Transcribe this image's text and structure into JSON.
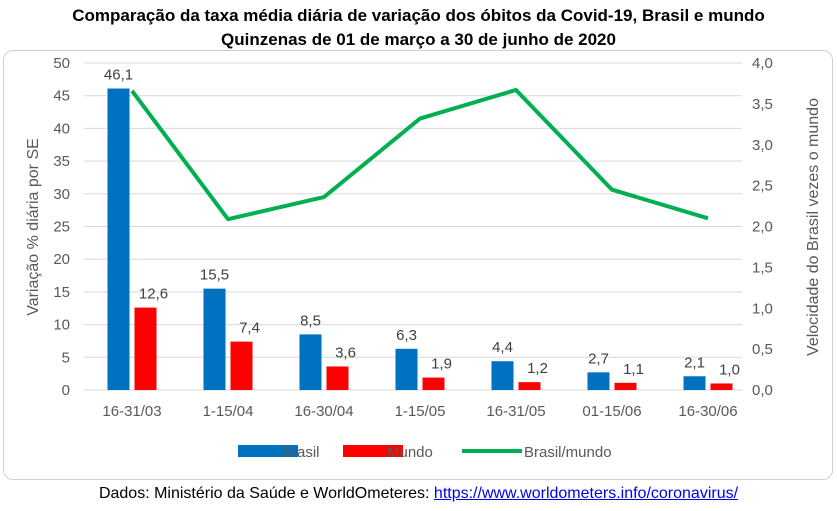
{
  "chart_data": {
    "type": "bar+line",
    "title": "Comparação da taxa média diária de variação dos óbitos da Covid-19, Brasil e mundo",
    "subtitle": "Quinzenas de 01 de março a 30 de junho de 2020",
    "categories": [
      "16-31/03",
      "1-15/04",
      "16-30/04",
      "1-15/05",
      "16-31/05",
      "01-15/06",
      "16-30/06"
    ],
    "ylabel": "Variação % diária por SE",
    "y2label": "Velocidade do Brasil vezes o mundo",
    "ylim": [
      0,
      50
    ],
    "y2lim": [
      0,
      4
    ],
    "yticks": [
      "0",
      "5",
      "10",
      "15",
      "20",
      "25",
      "30",
      "35",
      "40",
      "45",
      "50"
    ],
    "y2ticks": [
      "0,0",
      "0,5",
      "1,0",
      "1,5",
      "2,0",
      "2,5",
      "3,0",
      "3,5",
      "4,0"
    ],
    "grid": true,
    "legend_position": "bottom",
    "series": [
      {
        "name": "Brasil",
        "type": "bar",
        "axis": "left",
        "color": "#0070c0",
        "values": [
          46.1,
          15.5,
          8.5,
          6.3,
          4.4,
          2.7,
          2.1
        ],
        "labels": [
          "46,1",
          "15,5",
          "8,5",
          "6,3",
          "4,4",
          "2,7",
          "2,1"
        ]
      },
      {
        "name": "Mundo",
        "type": "bar",
        "axis": "left",
        "color": "#ff0000",
        "values": [
          12.6,
          7.4,
          3.6,
          1.9,
          1.2,
          1.1,
          1.0
        ],
        "labels": [
          "12,6",
          "7,4",
          "3,6",
          "1,9",
          "1,2",
          "1,1",
          "1,0"
        ]
      },
      {
        "name": "Brasil/mundo",
        "type": "line",
        "axis": "right",
        "color": "#00b050",
        "values": [
          3.66,
          2.09,
          2.36,
          3.32,
          3.67,
          2.45,
          2.1
        ]
      }
    ]
  },
  "source": {
    "text": "Dados: Ministério da Saúde e WorldOmeteres: ",
    "link": "https://www.worldometers.info/coronavirus/"
  }
}
